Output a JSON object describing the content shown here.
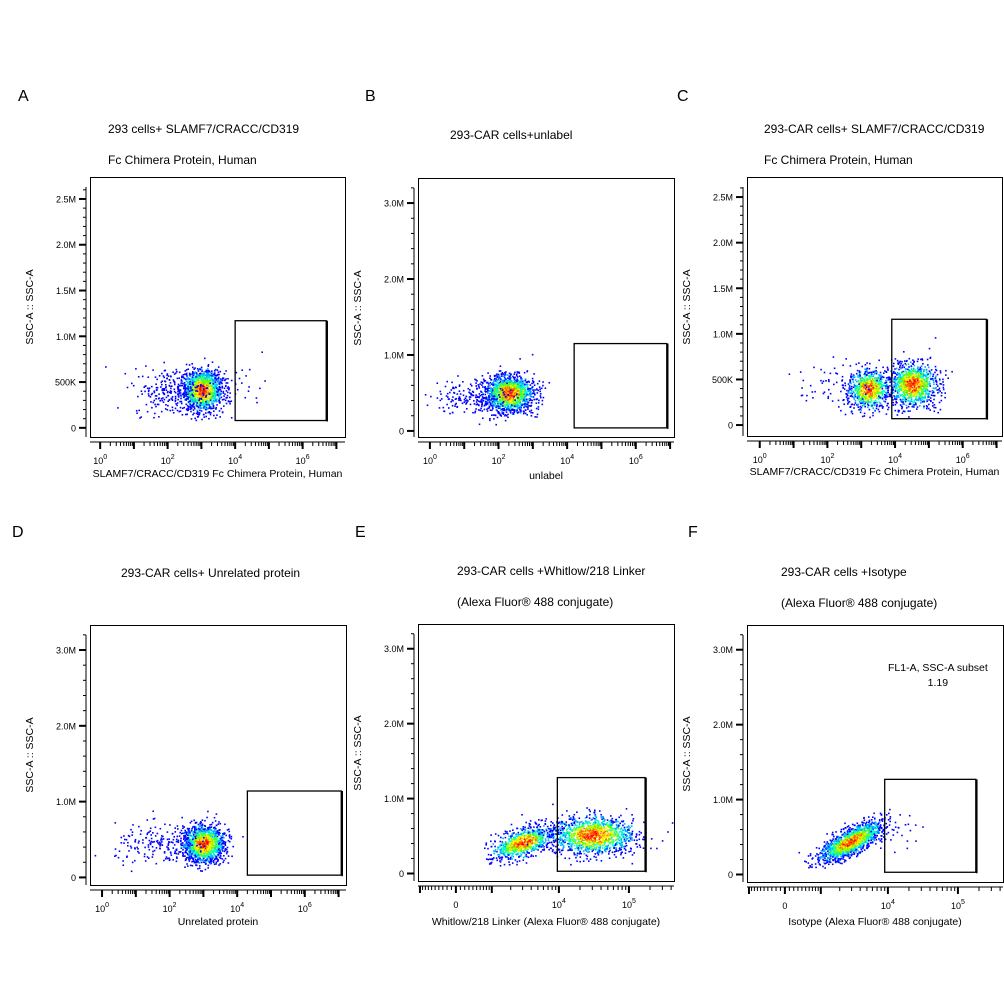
{
  "colormap": [
    "#0000ff",
    "#00aaff",
    "#00ffcc",
    "#66ff00",
    "#ffee00",
    "#ff6600",
    "#ff0000"
  ],
  "chart_data": [
    {
      "letter": "A",
      "type": "scatter",
      "title_lines": [
        "293 cells+ SLAMF7/CRACC/CD319",
        "Fc Chimera Protein, Human"
      ],
      "xlabel": "SLAMF7/CRACC/CD319 Fc Chimera Protein, Human",
      "ylabel": "SSC-A :: SSC-A",
      "xscale": "log",
      "xlim": [
        0.5,
        18000000
      ],
      "ylim": [
        -100000,
        2740000
      ],
      "xticks": [
        {
          "value": 1,
          "base": "10",
          "exp": "0"
        },
        {
          "value": 100,
          "base": "10",
          "exp": "2"
        },
        {
          "value": 10000,
          "base": "10",
          "exp": "4"
        },
        {
          "value": 1000000,
          "base": "10",
          "exp": "6"
        }
      ],
      "yticks": [
        {
          "value": 0,
          "label": "0"
        },
        {
          "value": 500000,
          "label": "500K"
        },
        {
          "value": 1000000,
          "label": "1.0M"
        },
        {
          "value": 1500000,
          "label": "1.5M"
        },
        {
          "value": 2000000,
          "label": "2.0M"
        },
        {
          "value": 2500000,
          "label": "2.5M"
        }
      ],
      "gate": {
        "x": [
          10000,
          5000000
        ],
        "y": [
          80000,
          1170000
        ]
      },
      "populations": [
        {
          "x_center": 1000,
          "x_sd_decades": 0.3,
          "y_center": 420000,
          "y_sd": 110000,
          "events": 1400
        },
        {
          "x_center": 150,
          "x_sd_decades": 0.6,
          "y_center": 400000,
          "y_sd": 130000,
          "events": 260
        },
        {
          "x_center": 20000,
          "x_sd_decades": 0.3,
          "y_center": 480000,
          "y_sd": 130000,
          "events": 18
        }
      ]
    },
    {
      "letter": "B",
      "type": "scatter",
      "title_lines": [
        "293-CAR cells+unlabel"
      ],
      "xlabel": "unlabel",
      "ylabel": "SSC-A :: SSC-A",
      "xscale": "log",
      "xlim": [
        0.45,
        13000000
      ],
      "ylim": [
        -80000,
        3330000
      ],
      "xticks": [
        {
          "value": 1,
          "base": "10",
          "exp": "0"
        },
        {
          "value": 100,
          "base": "10",
          "exp": "2"
        },
        {
          "value": 10000,
          "base": "10",
          "exp": "4"
        },
        {
          "value": 1000000,
          "base": "10",
          "exp": "6"
        }
      ],
      "yticks": [
        {
          "value": 0,
          "label": "0"
        },
        {
          "value": 1000000,
          "label": "1.0M"
        },
        {
          "value": 2000000,
          "label": "2.0M"
        },
        {
          "value": 3000000,
          "label": "3.0M"
        }
      ],
      "gate": {
        "x": [
          16000,
          8000000
        ],
        "y": [
          40000,
          1150000
        ]
      },
      "populations": [
        {
          "x_center": 200,
          "x_sd_decades": 0.35,
          "y_center": 500000,
          "y_sd": 120000,
          "events": 1400
        },
        {
          "x_center": 20,
          "x_sd_decades": 0.6,
          "y_center": 450000,
          "y_sd": 120000,
          "events": 200
        }
      ]
    },
    {
      "letter": "C",
      "type": "scatter",
      "title_lines": [
        "293-CAR cells+ SLAMF7/CRACC/CD319",
        "Fc Chimera Protein, Human"
      ],
      "xlabel": "SLAMF7/CRACC/CD319 Fc Chimera Protein, Human",
      "ylabel": "SSC-A :: SSC-A",
      "xscale": "log",
      "xlim": [
        0.42,
        14500000
      ],
      "ylim": [
        -120000,
        2720000
      ],
      "xticks": [
        {
          "value": 1,
          "base": "10",
          "exp": "0"
        },
        {
          "value": 100,
          "base": "10",
          "exp": "2"
        },
        {
          "value": 10000,
          "base": "10",
          "exp": "4"
        },
        {
          "value": 1000000,
          "base": "10",
          "exp": "6"
        }
      ],
      "yticks": [
        {
          "value": 0,
          "label": "0"
        },
        {
          "value": 500000,
          "label": "500K"
        },
        {
          "value": 1000000,
          "label": "1.0M"
        },
        {
          "value": 1500000,
          "label": "1.5M"
        },
        {
          "value": 2000000,
          "label": "2.0M"
        },
        {
          "value": 2500000,
          "label": "2.5M"
        }
      ],
      "gate": {
        "x": [
          8000,
          5000000
        ],
        "y": [
          70000,
          1160000
        ]
      },
      "populations": [
        {
          "x_center": 1600,
          "x_sd_decades": 0.3,
          "y_center": 400000,
          "y_sd": 110000,
          "events": 700
        },
        {
          "x_center": 32000,
          "x_sd_decades": 0.35,
          "y_center": 450000,
          "y_sd": 120000,
          "events": 1000
        },
        {
          "x_center": 200,
          "x_sd_decades": 0.6,
          "y_center": 420000,
          "y_sd": 130000,
          "events": 80
        }
      ]
    },
    {
      "letter": "D",
      "type": "scatter",
      "title_lines": [
        "293-CAR cells+ Unrelated protein"
      ],
      "xlabel": "Unrelated protein",
      "ylabel": "SSC-A :: SSC-A",
      "xscale": "log",
      "xlim": [
        0.44,
        16600000
      ],
      "ylim": [
        -100000,
        3330000
      ],
      "xticks": [
        {
          "value": 1,
          "base": "10",
          "exp": "0"
        },
        {
          "value": 100,
          "base": "10",
          "exp": "2"
        },
        {
          "value": 10000,
          "base": "10",
          "exp": "4"
        },
        {
          "value": 1000000,
          "base": "10",
          "exp": "6"
        }
      ],
      "yticks": [
        {
          "value": 0,
          "label": "0"
        },
        {
          "value": 1000000,
          "label": "1.0M"
        },
        {
          "value": 2000000,
          "label": "2.0M"
        },
        {
          "value": 3000000,
          "label": "3.0M"
        }
      ],
      "gate": {
        "x": [
          20000,
          12000000
        ],
        "y": [
          30000,
          1140000
        ]
      },
      "populations": [
        {
          "x_center": 1000,
          "x_sd_decades": 0.3,
          "y_center": 450000,
          "y_sd": 120000,
          "events": 1400
        },
        {
          "x_center": 60,
          "x_sd_decades": 0.7,
          "y_center": 420000,
          "y_sd": 140000,
          "events": 200
        }
      ]
    },
    {
      "letter": "E",
      "type": "scatter",
      "title_lines": [
        "293-CAR cells +Whitlow/218 Linker",
        "(Alexa Fluor® 488 conjugate)"
      ],
      "xlabel": "Whitlow/218 Linker (Alexa Fluor® 488 conjugate)",
      "ylabel": "SSC-A :: SSC-A",
      "xscale": "biexponential",
      "xlim": [
        -1080,
        440000
      ],
      "ylim": [
        -100000,
        3330000
      ],
      "xticks": [
        {
          "value": 0,
          "base": "0",
          "exp": ""
        },
        {
          "value": 10000,
          "base": "10",
          "exp": "4"
        },
        {
          "value": 100000,
          "base": "10",
          "exp": "5"
        }
      ],
      "yticks": [
        {
          "value": 0,
          "label": "0"
        },
        {
          "value": 1000000,
          "label": "1.0M"
        },
        {
          "value": 2000000,
          "label": "2.0M"
        },
        {
          "value": 3000000,
          "label": "3.0M"
        }
      ],
      "gate": {
        "x": [
          9500,
          170000
        ],
        "y": [
          30000,
          1280000
        ]
      },
      "populations": [
        {
          "x_center": 3000,
          "x_sd_decades": 0.22,
          "y_center": 420000,
          "y_sd": 110000,
          "events": 800,
          "xy_correlation": 0.5
        },
        {
          "x_center": 30000,
          "x_sd_decades": 0.3,
          "y_center": 520000,
          "y_sd": 130000,
          "events": 1200
        }
      ]
    },
    {
      "letter": "F",
      "type": "scatter",
      "title_lines": [
        "293-CAR cells +Isotype",
        "(Alexa Fluor® 488 conjugate)"
      ],
      "xlabel": "Isotype (Alexa Fluor® 488 conjugate)",
      "ylabel": "SSC-A :: SSC-A",
      "xscale": "biexponential",
      "xlim": [
        -1080,
        440000
      ],
      "ylim": [
        -100000,
        3330000
      ],
      "xticks": [
        {
          "value": 0,
          "base": "0",
          "exp": ""
        },
        {
          "value": 10000,
          "base": "10",
          "exp": "4"
        },
        {
          "value": 100000,
          "base": "10",
          "exp": "5"
        }
      ],
      "yticks": [
        {
          "value": 0,
          "label": "0"
        },
        {
          "value": 1000000,
          "label": "1.0M"
        },
        {
          "value": 2000000,
          "label": "2.0M"
        },
        {
          "value": 3000000,
          "label": "3.0M"
        }
      ],
      "gate": {
        "x": [
          9000,
          180000
        ],
        "y": [
          30000,
          1270000
        ]
      },
      "annotation": {
        "name": "FL1-A, SSC-A subset",
        "value": "1.19"
      },
      "populations": [
        {
          "x_center": 2900,
          "x_sd_decades": 0.22,
          "y_center": 450000,
          "y_sd": 130000,
          "events": 1500,
          "xy_correlation": 0.75
        },
        {
          "x_center": 12000,
          "x_sd_decades": 0.2,
          "y_center": 600000,
          "y_sd": 120000,
          "events": 25
        }
      ]
    }
  ]
}
